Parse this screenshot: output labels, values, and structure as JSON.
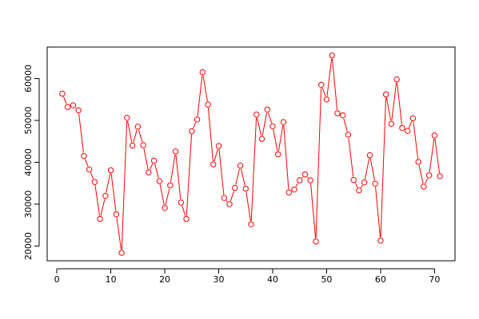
{
  "chart_data": {
    "type": "line",
    "title": "",
    "xlabel": "",
    "ylabel": "",
    "xlim": [
      -1.8,
      73.8
    ],
    "ylim": [
      16500,
      67500
    ],
    "x_ticks": [
      0,
      10,
      20,
      30,
      40,
      50,
      60,
      70
    ],
    "y_ticks": [
      20000,
      30000,
      40000,
      50000,
      60000
    ],
    "x_tick_labels": [
      "0",
      "10",
      "20",
      "30",
      "40",
      "50",
      "60",
      "70"
    ],
    "y_tick_labels": [
      "20000",
      "30000",
      "40000",
      "50000",
      "60000"
    ],
    "grid": false,
    "series": [
      {
        "color": "#ff0000",
        "marker": "open-circle",
        "x": [
          1,
          2,
          3,
          4,
          5,
          6,
          7,
          8,
          9,
          10,
          11,
          12,
          13,
          14,
          15,
          16,
          17,
          18,
          19,
          20,
          21,
          22,
          23,
          24,
          25,
          26,
          27,
          28,
          29,
          30,
          31,
          32,
          33,
          34,
          35,
          36,
          37,
          38,
          39,
          40,
          41,
          42,
          43,
          44,
          45,
          46,
          47,
          48,
          49,
          50,
          51,
          52,
          53,
          54,
          55,
          56,
          57,
          58,
          59,
          60,
          61,
          62,
          63,
          64,
          65,
          66,
          67,
          68,
          69,
          70,
          71
        ],
        "values": [
          56400,
          53200,
          53600,
          52400,
          41500,
          38300,
          35300,
          26500,
          32000,
          38100,
          27600,
          18400,
          50600,
          44000,
          48500,
          44100,
          37600,
          40400,
          35500,
          29100,
          34500,
          42600,
          30400,
          26500,
          47400,
          50200,
          61500,
          53800,
          39500,
          43900,
          31500,
          30000,
          33900,
          39200,
          33700,
          25200,
          51400,
          45600,
          52600,
          48600,
          41900,
          49600,
          32800,
          33500,
          35700,
          37100,
          35700,
          21100,
          58500,
          55000,
          65500,
          51700,
          51200,
          46600,
          35800,
          33300,
          35200,
          41700,
          34900,
          21300,
          56200,
          49200,
          59800,
          48200,
          47500,
          50500,
          40100,
          34200,
          36900,
          46400,
          36700
        ]
      }
    ]
  }
}
